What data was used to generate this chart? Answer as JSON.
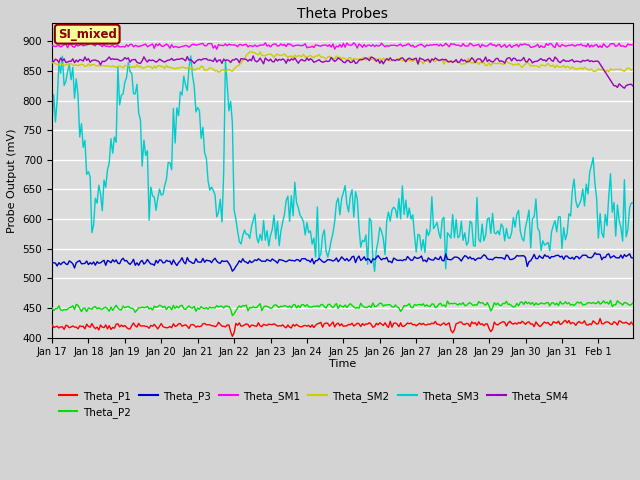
{
  "title": "Theta Probes",
  "xlabel": "Time",
  "ylabel": "Probe Output (mV)",
  "ylim": [
    400,
    930
  ],
  "yticks": [
    400,
    450,
    500,
    550,
    600,
    650,
    700,
    750,
    800,
    850,
    900
  ],
  "plot_bg": "#dcdcdc",
  "fig_bg": "#d3d3d3",
  "colors": {
    "Theta_P1": "#ff0000",
    "Theta_P2": "#00dd00",
    "Theta_P3": "#0000cc",
    "Theta_SM1": "#ff00ff",
    "Theta_SM2": "#cccc00",
    "Theta_SM3": "#00cccc",
    "Theta_SM4": "#9900bb"
  },
  "legend_label": "SI_mixed",
  "legend_label_color": "#8B0000",
  "legend_box_color": "#ffff99",
  "legend_box_edge": "#8B0000",
  "date_labels": [
    "Jan 17",
    "Jan 18",
    "Jan 19",
    "Jan 20",
    "Jan 21",
    "Jan 22",
    "Jan 23",
    "Jan 24",
    "Jan 25",
    "Jan 26",
    "Jan 27",
    "Jan 28",
    "Jan 29",
    "Jan 30",
    "Jan 31",
    "Feb 1"
  ],
  "date_positions": [
    0,
    21,
    42,
    63,
    84,
    105,
    126,
    147,
    168,
    189,
    210,
    231,
    252,
    273,
    294,
    315
  ],
  "n_points": 336
}
